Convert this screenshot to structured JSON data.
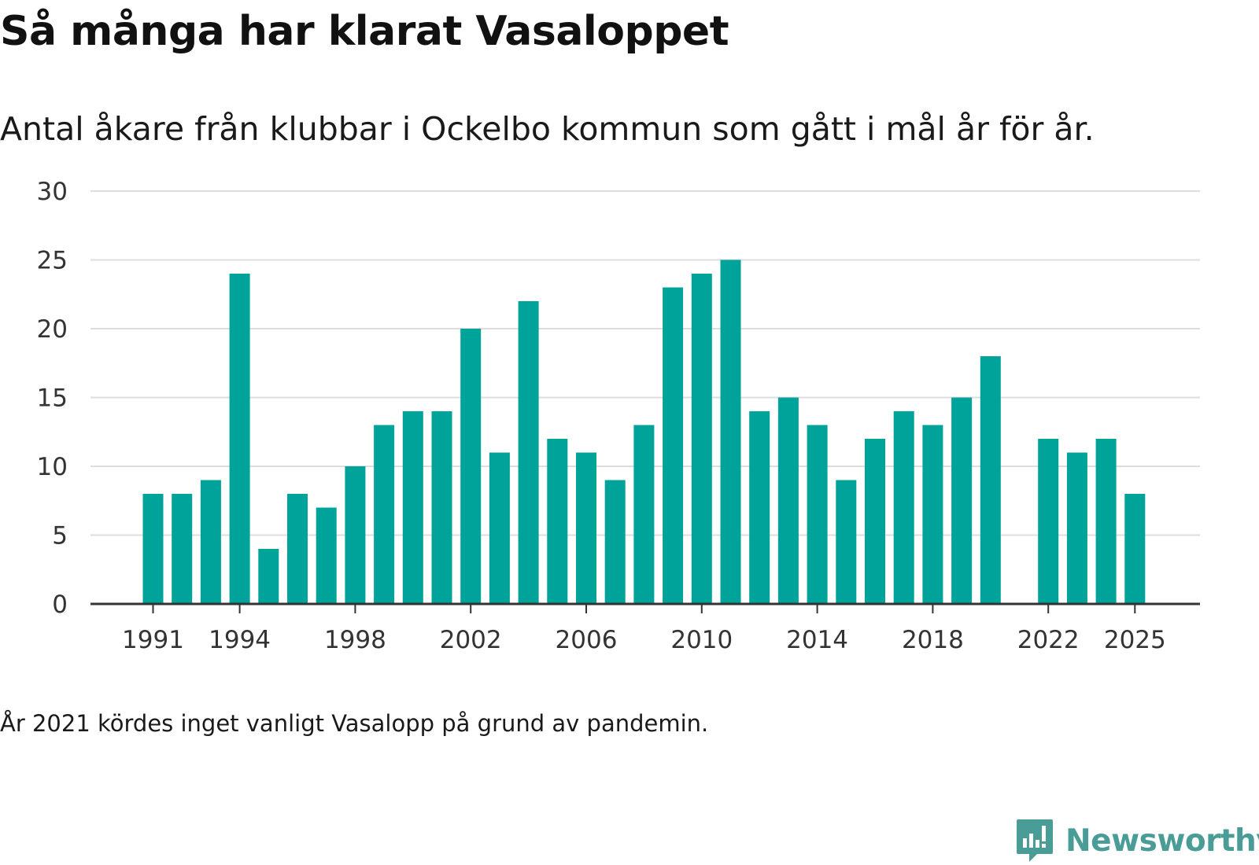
{
  "title": "Så många har klarat Vasaloppet",
  "subtitle": "Antal åkare från klubbar i Ockelbo kommun som gått i mål år för år.",
  "note": "År 2021 kördes inget vanligt Vasalopp på grund av pandemin.",
  "brand": {
    "name": "Newsworthy",
    "icon": "newsworthy-logo-icon"
  },
  "colors": {
    "bar": "#00a39a",
    "grid": "#dddddd",
    "axis": "#333333",
    "brand": "#4a9c96"
  },
  "chart_data": {
    "type": "bar",
    "title": "Så många har klarat Vasaloppet",
    "xlabel": "",
    "ylabel": "",
    "ylim": [
      0,
      30
    ],
    "yticks": [
      0,
      5,
      10,
      15,
      20,
      25,
      30
    ],
    "xticks": [
      1991,
      1994,
      1998,
      2002,
      2006,
      2010,
      2014,
      2018,
      2022,
      2025
    ],
    "grid": true,
    "categories": [
      1991,
      1992,
      1993,
      1994,
      1995,
      1996,
      1997,
      1998,
      1999,
      2000,
      2001,
      2002,
      2003,
      2004,
      2005,
      2006,
      2007,
      2008,
      2009,
      2010,
      2011,
      2012,
      2013,
      2014,
      2015,
      2016,
      2017,
      2018,
      2019,
      2020,
      2021,
      2022,
      2023,
      2024,
      2025
    ],
    "values": [
      8,
      8,
      9,
      24,
      4,
      8,
      7,
      10,
      13,
      14,
      14,
      20,
      11,
      22,
      12,
      11,
      9,
      13,
      23,
      24,
      25,
      14,
      15,
      13,
      9,
      12,
      14,
      13,
      15,
      18,
      null,
      12,
      11,
      12,
      8
    ]
  }
}
